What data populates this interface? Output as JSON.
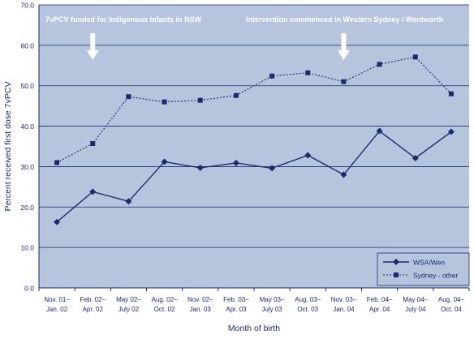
{
  "chart_data": {
    "type": "line",
    "title": "",
    "xlabel": "Month of birth",
    "ylabel": "Percent received first dose 7vPCV",
    "ylim": [
      0,
      70
    ],
    "y_ticks": [
      "0.0",
      "10.0",
      "20.0",
      "30.0",
      "40.0",
      "50.0",
      "60.0",
      "70.0"
    ],
    "grid": true,
    "legend_position": "bottom-right",
    "categories": [
      [
        "Nov. 01–",
        "Jan. 02"
      ],
      [
        "Feb. 02–",
        "Apr. 02"
      ],
      [
        "May 02–",
        "July 02"
      ],
      [
        "Aug. 02–",
        "Oct. 02"
      ],
      [
        "Nov. 02–",
        "Jan. 03"
      ],
      [
        "Feb. 03–",
        "Apr. 03"
      ],
      [
        "May 03–",
        "July 03"
      ],
      [
        "Aug. 03–",
        "Oct. 03"
      ],
      [
        "Nov. 03–",
        "Jan. 04"
      ],
      [
        "Feb. 04–",
        "Apr. 04"
      ],
      [
        "May 04–",
        "July 04"
      ],
      [
        "Aug. 04–",
        "Oct. 04"
      ]
    ],
    "series": [
      {
        "name": "WSA/Wen",
        "line_style": "solid",
        "marker": "diamond",
        "values": [
          16.3,
          23.8,
          21.4,
          31.2,
          29.7,
          30.9,
          29.6,
          32.8,
          28.0,
          38.8,
          32.1,
          38.6
        ]
      },
      {
        "name": "Sydney - other",
        "line_style": "dotted",
        "marker": "square",
        "values": [
          31.0,
          35.7,
          47.3,
          46.0,
          46.4,
          47.6,
          52.4,
          53.2,
          51.0,
          55.3,
          57.1,
          48.0
        ]
      }
    ],
    "annotations": [
      {
        "text": "7vPCV funded for Indigenous infants in NSW",
        "arrow_category_index": 1
      },
      {
        "text": "Intervention commenced in Western Sydney / Wentworth",
        "arrow_category_index": 8
      }
    ],
    "colors": {
      "plot_background": "#b7c4de",
      "line": "#1a2a6c",
      "text": "#1a2a6c",
      "annotation": "#ffffff",
      "grid": "#1a2a6c"
    }
  }
}
